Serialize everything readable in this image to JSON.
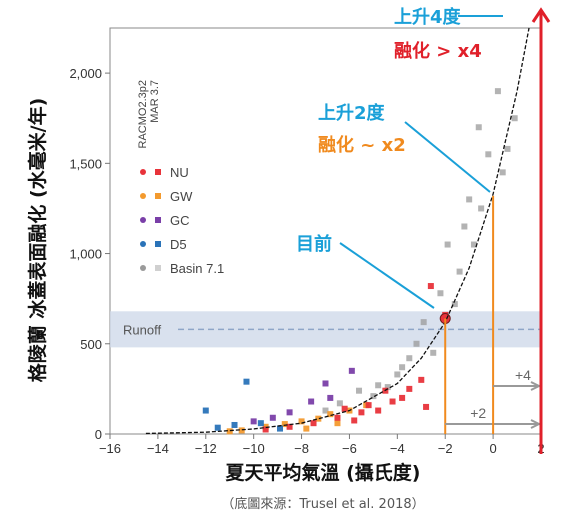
{
  "chart_data": {
    "type": "scatter",
    "xlabel": "夏天平均氣溫 (攝氏度)",
    "ylabel": "格陵蘭 冰蓋表面融化 (水毫米/年)",
    "caption": "（底圖來源：Trusel et al. 2018）",
    "xlim": [
      -16,
      2
    ],
    "ylim": [
      0,
      2250
    ],
    "x_ticks": [
      -16,
      -14,
      -12,
      -10,
      -8,
      -6,
      -4,
      -2,
      0,
      2
    ],
    "x_tick_labels": [
      "−16",
      "−14",
      "−12",
      "−10",
      "−8",
      "−6",
      "−4",
      "−2",
      "0",
      "2"
    ],
    "y_ticks": [
      0,
      500,
      1000,
      1500,
      2000
    ],
    "y_tick_labels": [
      "0",
      "500",
      "1,000",
      "1,500",
      "2,000"
    ],
    "model_labels": [
      "RACMO2.3p2",
      "MAR 3.7"
    ],
    "legend": [
      {
        "label": "NU",
        "color": "#e8333a"
      },
      {
        "label": "GW",
        "color": "#f39a2e"
      },
      {
        "label": "GC",
        "color": "#7a3fa8"
      },
      {
        "label": "D5",
        "color": "#2a73b8"
      },
      {
        "label": "Basin 7.1",
        "color": "#9a9a9a"
      }
    ],
    "runoff_band": {
      "label": "Runoff",
      "y_range": [
        480,
        680
      ],
      "line_y": 580
    },
    "fit_curve": {
      "description_points": [
        [
          -14.5,
          3
        ],
        [
          -12,
          10
        ],
        [
          -10,
          28
        ],
        [
          -8,
          60
        ],
        [
          -6,
          130
        ],
        [
          -4,
          280
        ],
        [
          -3,
          420
        ],
        [
          -2,
          620
        ],
        [
          -1,
          920
        ],
        [
          0,
          1330
        ],
        [
          1,
          1900
        ],
        [
          1.5,
          2250
        ]
      ]
    },
    "series": [
      {
        "name": "NU",
        "color": "#e8333a",
        "points": [
          [
            -2.6,
            820
          ],
          [
            -2.0,
            660
          ],
          [
            -3.0,
            300
          ],
          [
            -3.5,
            250
          ],
          [
            -4.2,
            180
          ],
          [
            -5.5,
            120
          ],
          [
            -6.5,
            90
          ],
          [
            -7.5,
            60
          ],
          [
            -8.5,
            40
          ],
          [
            -9.5,
            25
          ],
          [
            -2.8,
            150
          ],
          [
            -3.8,
            200
          ],
          [
            -4.8,
            130
          ],
          [
            -5.8,
            75
          ],
          [
            -6.2,
            140
          ],
          [
            -5.2,
            160
          ],
          [
            -4.5,
            240
          ]
        ]
      },
      {
        "name": "GW",
        "color": "#f39a2e",
        "points": [
          [
            -9.5,
            40
          ],
          [
            -8.7,
            55
          ],
          [
            -8.0,
            70
          ],
          [
            -7.3,
            85
          ],
          [
            -6.8,
            110
          ],
          [
            -6.0,
            130
          ],
          [
            -5.3,
            160
          ],
          [
            -10.5,
            20
          ],
          [
            -11.0,
            15
          ],
          [
            -7.8,
            30
          ],
          [
            -6.5,
            60
          ]
        ]
      },
      {
        "name": "GC",
        "color": "#7a3fa8",
        "points": [
          [
            -5.9,
            350
          ],
          [
            -7.0,
            280
          ],
          [
            -8.5,
            120
          ],
          [
            -9.2,
            90
          ],
          [
            -10.0,
            70
          ],
          [
            -6.8,
            200
          ],
          [
            -7.6,
            180
          ]
        ]
      },
      {
        "name": "D5",
        "color": "#2a73b8",
        "points": [
          [
            -10.3,
            290
          ],
          [
            -12.0,
            130
          ],
          [
            -10.8,
            50
          ],
          [
            -9.7,
            60
          ],
          [
            -8.9,
            30
          ],
          [
            -11.5,
            35
          ]
        ]
      },
      {
        "name": "Basin 7.1",
        "color": "#9a9a9a",
        "points": [
          [
            -3.8,
            370
          ],
          [
            -2.5,
            450
          ],
          [
            -1.6,
            720
          ],
          [
            -0.8,
            1050
          ],
          [
            -0.5,
            1250
          ],
          [
            0.4,
            1450
          ],
          [
            0.9,
            1750
          ],
          [
            -1.0,
            1300
          ],
          [
            -1.4,
            900
          ],
          [
            -0.2,
            1550
          ],
          [
            0.6,
            1580
          ],
          [
            -3.2,
            500
          ],
          [
            -4.4,
            260
          ],
          [
            -5.0,
            210
          ],
          [
            -6.4,
            170
          ],
          [
            -7.0,
            130
          ],
          [
            -1.9,
            1050
          ],
          [
            -0.6,
            1700
          ],
          [
            -1.2,
            1150
          ],
          [
            0.2,
            1900
          ],
          [
            -2.9,
            620
          ],
          [
            -2.2,
            780
          ],
          [
            -3.5,
            420
          ],
          [
            -4.0,
            330
          ],
          [
            -4.8,
            270
          ],
          [
            -5.6,
            240
          ]
        ]
      }
    ],
    "current_marker": {
      "x": -2,
      "y": 640
    },
    "scenario_lines": [
      {
        "label": "+2",
        "x": -2,
        "y_top": 640
      },
      {
        "label": "+4",
        "x": 0,
        "y_top": 1320
      }
    ],
    "arrow_x": 2
  },
  "annotations": {
    "current": "目前",
    "plus2_title": "上升2度",
    "plus2_melt": "融化 ~ x2",
    "plus4_title": "上升4度",
    "plus4_melt": "融化 > x4"
  },
  "colors": {
    "blue_annotation": "#1aa0d8",
    "orange_line": "#f08a1e",
    "red_arrow": "#e0202a",
    "runoff_band": "#cfd9ea",
    "runoff_line": "#8fa6c8"
  }
}
